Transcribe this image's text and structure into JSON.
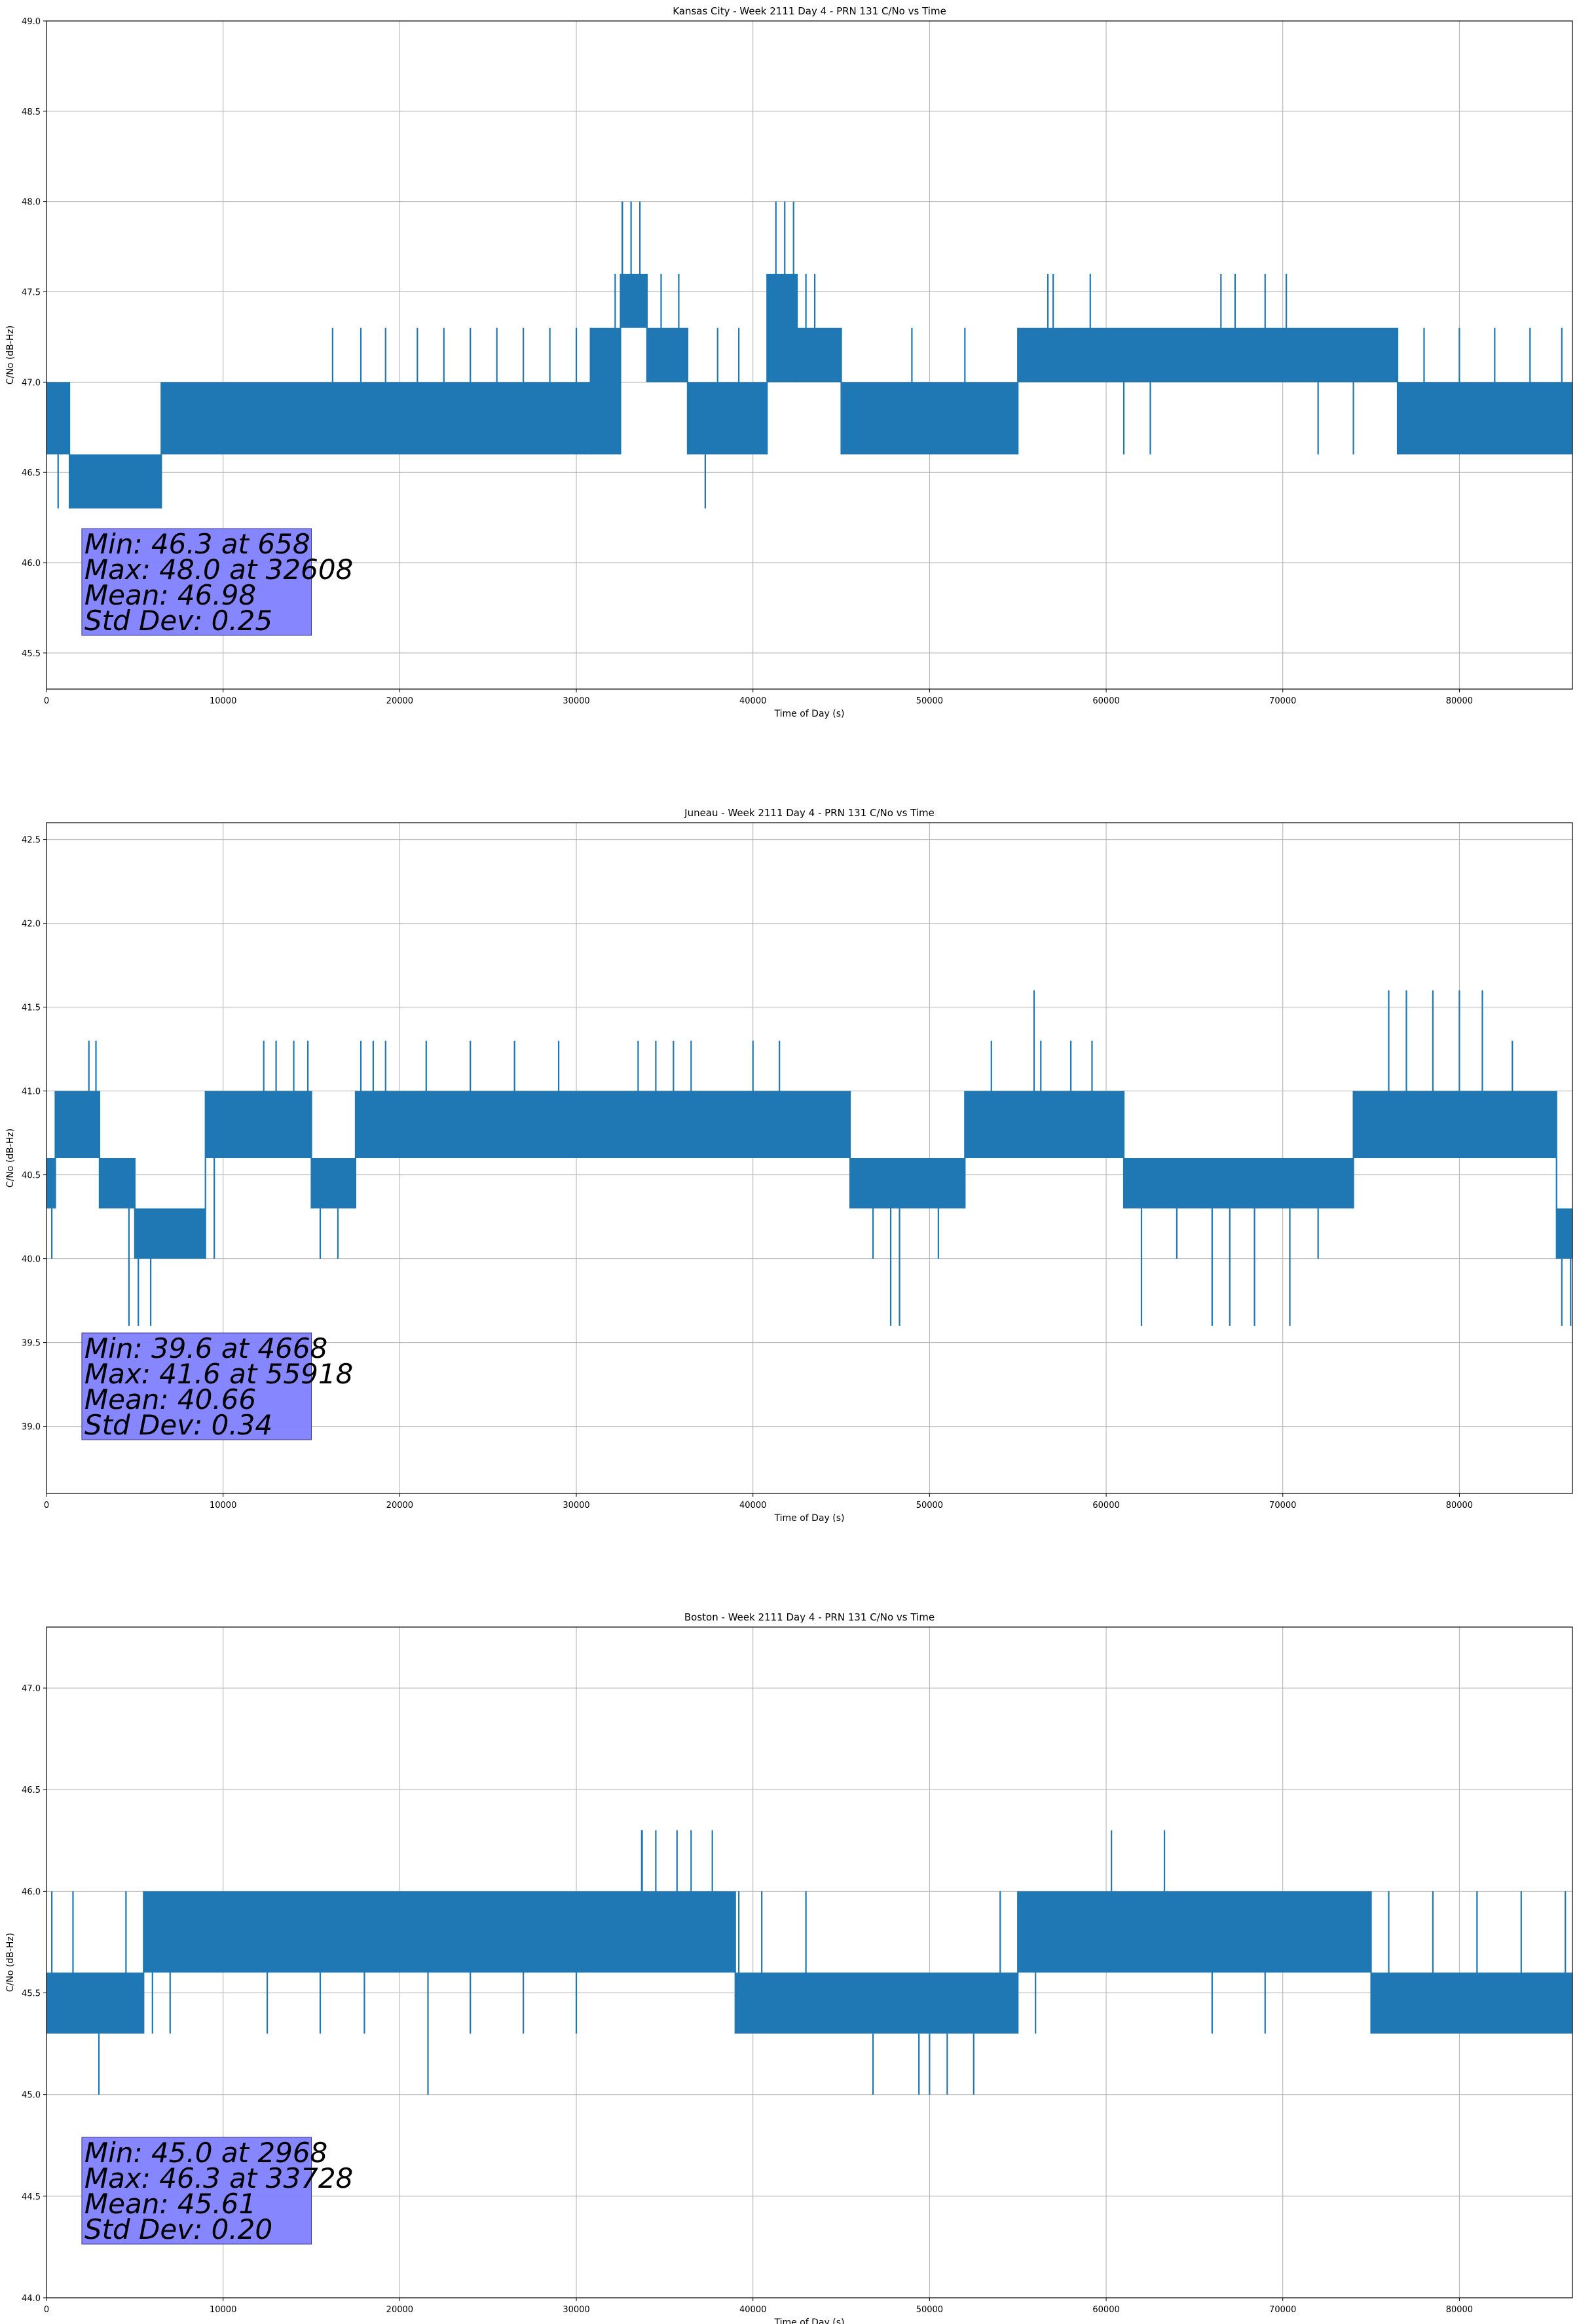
{
  "colors": {
    "series": "#1f77b4",
    "stats_box": "#8080ff",
    "grid": "#b0b0b0"
  },
  "chart_data": [
    {
      "type": "line",
      "title": "Kansas City - Week 2111 Day 4 - PRN 131 C/No vs Time",
      "xlabel": "Time of Day (s)",
      "ylabel": "C/No (dB-Hz)",
      "xlim": [
        0,
        86400
      ],
      "ylim": [
        45.3,
        49.0
      ],
      "xticks": [
        0,
        10000,
        20000,
        30000,
        40000,
        50000,
        60000,
        70000,
        80000
      ],
      "yticks": [
        45.5,
        46.0,
        46.5,
        47.0,
        47.5,
        48.0,
        48.5,
        49.0
      ],
      "grid": true,
      "stats": [
        "Min: 46.3 at 658",
        "Max: 48.0 at 32608",
        "Mean: 46.98",
        "Std Dev: 0.25"
      ],
      "series": [
        {
          "bands": [
            {
              "x": [
                0,
                1300
              ],
              "y": [
                46.6,
                47.0
              ]
            },
            {
              "x": [
                1300,
                6500
              ],
              "y": [
                46.3,
                46.6
              ]
            },
            {
              "x": [
                6500,
                30800
              ],
              "y": [
                46.6,
                47.0
              ]
            },
            {
              "x": [
                30800,
                32500
              ],
              "y": [
                46.6,
                47.3
              ]
            },
            {
              "x": [
                32500,
                34000
              ],
              "y": [
                47.3,
                47.6
              ]
            },
            {
              "x": [
                34000,
                36300
              ],
              "y": [
                47.0,
                47.3
              ]
            },
            {
              "x": [
                36300,
                40800
              ],
              "y": [
                46.6,
                47.0
              ]
            },
            {
              "x": [
                40800,
                42500
              ],
              "y": [
                47.0,
                47.6
              ]
            },
            {
              "x": [
                42500,
                45000
              ],
              "y": [
                47.0,
                47.3
              ]
            },
            {
              "x": [
                45000,
                55000
              ],
              "y": [
                46.6,
                47.0
              ]
            },
            {
              "x": [
                55000,
                76500
              ],
              "y": [
                47.0,
                47.3
              ]
            },
            {
              "x": [
                76500,
                86400
              ],
              "y": [
                46.6,
                47.0
              ]
            }
          ],
          "spikes": [
            [
              658,
              46.3
            ],
            [
              2200,
              46.3
            ],
            [
              5800,
              46.3
            ],
            [
              6500,
              46.3
            ],
            [
              16200,
              47.3
            ],
            [
              17800,
              47.3
            ],
            [
              19200,
              47.3
            ],
            [
              21000,
              47.3
            ],
            [
              22500,
              47.3
            ],
            [
              24000,
              47.3
            ],
            [
              25500,
              47.3
            ],
            [
              27000,
              47.3
            ],
            [
              28500,
              47.3
            ],
            [
              30000,
              47.3
            ],
            [
              32600,
              48.0
            ],
            [
              32608,
              48.0
            ],
            [
              33100,
              48.0
            ],
            [
              33600,
              48.0
            ],
            [
              32200,
              47.6
            ],
            [
              34800,
              47.6
            ],
            [
              35800,
              47.6
            ],
            [
              37300,
              46.3
            ],
            [
              38000,
              47.3
            ],
            [
              39200,
              47.3
            ],
            [
              41300,
              48.0
            ],
            [
              41800,
              48.0
            ],
            [
              42300,
              48.0
            ],
            [
              43000,
              47.6
            ],
            [
              43500,
              47.6
            ],
            [
              45500,
              46.6
            ],
            [
              47000,
              46.6
            ],
            [
              49000,
              47.3
            ],
            [
              52000,
              47.3
            ],
            [
              56700,
              47.6
            ],
            [
              57000,
              47.6
            ],
            [
              59100,
              47.6
            ],
            [
              61000,
              46.6
            ],
            [
              62500,
              46.6
            ],
            [
              66500,
              47.6
            ],
            [
              67300,
              47.6
            ],
            [
              69000,
              47.6
            ],
            [
              70200,
              47.6
            ],
            [
              72000,
              46.6
            ],
            [
              74000,
              46.6
            ],
            [
              78000,
              47.3
            ],
            [
              80000,
              47.3
            ],
            [
              82000,
              47.3
            ],
            [
              84000,
              47.3
            ],
            [
              85800,
              47.3
            ]
          ]
        }
      ]
    },
    {
      "type": "line",
      "title": "Juneau - Week 2111 Day 4 - PRN 131 C/No vs Time",
      "xlabel": "Time of Day (s)",
      "ylabel": "C/No (dB-Hz)",
      "xlim": [
        0,
        86400
      ],
      "ylim": [
        38.6,
        42.6
      ],
      "xticks": [
        0,
        10000,
        20000,
        30000,
        40000,
        50000,
        60000,
        70000,
        80000
      ],
      "yticks": [
        39.0,
        39.5,
        40.0,
        40.5,
        41.0,
        41.5,
        42.0,
        42.5
      ],
      "grid": true,
      "stats": [
        "Min: 39.6 at 4668",
        "Max: 41.6 at 55918",
        "Mean: 40.66",
        "Std Dev: 0.34"
      ],
      "series": [
        {
          "bands": [
            {
              "x": [
                0,
                500
              ],
              "y": [
                40.3,
                40.6
              ]
            },
            {
              "x": [
                500,
                3000
              ],
              "y": [
                40.6,
                41.0
              ]
            },
            {
              "x": [
                3000,
                5000
              ],
              "y": [
                40.3,
                40.6
              ]
            },
            {
              "x": [
                5000,
                9000
              ],
              "y": [
                40.0,
                40.3
              ]
            },
            {
              "x": [
                9000,
                15000
              ],
              "y": [
                40.6,
                41.0
              ]
            },
            {
              "x": [
                15000,
                17500
              ],
              "y": [
                40.3,
                40.6
              ]
            },
            {
              "x": [
                17500,
                45500
              ],
              "y": [
                40.6,
                41.0
              ]
            },
            {
              "x": [
                45500,
                52000
              ],
              "y": [
                40.3,
                40.6
              ]
            },
            {
              "x": [
                52000,
                61000
              ],
              "y": [
                40.6,
                41.0
              ]
            },
            {
              "x": [
                61000,
                74000
              ],
              "y": [
                40.3,
                40.6
              ]
            },
            {
              "x": [
                74000,
                85500
              ],
              "y": [
                40.6,
                41.0
              ]
            },
            {
              "x": [
                85500,
                86400
              ],
              "y": [
                40.0,
                40.3
              ]
            }
          ],
          "spikes": [
            [
              300,
              40.0
            ],
            [
              2400,
              41.3
            ],
            [
              2800,
              41.3
            ],
            [
              4668,
              39.6
            ],
            [
              5200,
              39.6
            ],
            [
              5900,
              39.6
            ],
            [
              9500,
              40.0
            ],
            [
              12300,
              41.3
            ],
            [
              13000,
              41.3
            ],
            [
              14000,
              41.3
            ],
            [
              14800,
              41.3
            ],
            [
              15500,
              40.0
            ],
            [
              16500,
              40.0
            ],
            [
              17800,
              41.3
            ],
            [
              18500,
              41.3
            ],
            [
              19200,
              41.3
            ],
            [
              21500,
              41.3
            ],
            [
              24000,
              41.3
            ],
            [
              26500,
              41.3
            ],
            [
              29000,
              41.3
            ],
            [
              33500,
              41.3
            ],
            [
              34500,
              41.3
            ],
            [
              35500,
              41.3
            ],
            [
              36500,
              41.3
            ],
            [
              40000,
              41.3
            ],
            [
              41500,
              41.3
            ],
            [
              46800,
              40.0
            ],
            [
              47800,
              39.6
            ],
            [
              48300,
              39.6
            ],
            [
              50500,
              40.0
            ],
            [
              53500,
              41.3
            ],
            [
              55918,
              41.6
            ],
            [
              56300,
              41.3
            ],
            [
              58000,
              41.3
            ],
            [
              59200,
              41.3
            ],
            [
              62000,
              39.6
            ],
            [
              64000,
              40.0
            ],
            [
              66000,
              39.6
            ],
            [
              67000,
              39.6
            ],
            [
              68400,
              39.6
            ],
            [
              70400,
              39.6
            ],
            [
              72000,
              40.0
            ],
            [
              76000,
              41.6
            ],
            [
              77000,
              41.6
            ],
            [
              78500,
              41.6
            ],
            [
              80000,
              41.6
            ],
            [
              81300,
              41.6
            ],
            [
              83000,
              41.3
            ],
            [
              85800,
              39.6
            ],
            [
              86300,
              39.6
            ]
          ]
        }
      ]
    },
    {
      "type": "line",
      "title": "Boston - Week 2111 Day 4 - PRN 131 C/No vs Time",
      "xlabel": "Time of Day (s)",
      "ylabel": "C/No (dB-Hz)",
      "xlim": [
        0,
        86400
      ],
      "ylim": [
        44.0,
        47.3
      ],
      "xticks": [
        0,
        10000,
        20000,
        30000,
        40000,
        50000,
        60000,
        70000,
        80000
      ],
      "yticks": [
        44.0,
        44.5,
        45.0,
        45.5,
        46.0,
        46.5,
        47.0
      ],
      "grid": true,
      "stats": [
        "Min: 45.0 at 2968",
        "Max: 46.3 at 33728",
        "Mean: 45.61",
        "Std Dev: 0.20"
      ],
      "series": [
        {
          "bands": [
            {
              "x": [
                0,
                5500
              ],
              "y": [
                45.3,
                45.6
              ]
            },
            {
              "x": [
                5500,
                39000
              ],
              "y": [
                45.6,
                46.0
              ]
            },
            {
              "x": [
                39000,
                55000
              ],
              "y": [
                45.3,
                45.6
              ]
            },
            {
              "x": [
                55000,
                75000
              ],
              "y": [
                45.6,
                46.0
              ]
            },
            {
              "x": [
                75000,
                86400
              ],
              "y": [
                45.3,
                45.6
              ]
            }
          ],
          "spikes": [
            [
              300,
              46.0
            ],
            [
              1500,
              46.0
            ],
            [
              2968,
              45.0
            ],
            [
              4500,
              46.0
            ],
            [
              6000,
              45.3
            ],
            [
              7000,
              45.3
            ],
            [
              12500,
              45.3
            ],
            [
              15500,
              45.3
            ],
            [
              18000,
              45.3
            ],
            [
              21600,
              45.0
            ],
            [
              24000,
              45.3
            ],
            [
              27000,
              45.3
            ],
            [
              30000,
              45.3
            ],
            [
              33700,
              46.3
            ],
            [
              33728,
              46.3
            ],
            [
              34500,
              46.3
            ],
            [
              35700,
              46.3
            ],
            [
              36500,
              46.3
            ],
            [
              37700,
              46.3
            ],
            [
              39200,
              46.0
            ],
            [
              40500,
              46.0
            ],
            [
              43000,
              46.0
            ],
            [
              46800,
              45.0
            ],
            [
              49400,
              45.0
            ],
            [
              50000,
              45.0
            ],
            [
              51000,
              45.0
            ],
            [
              52500,
              45.0
            ],
            [
              54000,
              46.0
            ],
            [
              56000,
              45.3
            ],
            [
              60300,
              46.3
            ],
            [
              63300,
              46.3
            ],
            [
              66000,
              45.3
            ],
            [
              69000,
              45.3
            ],
            [
              72000,
              46.0
            ],
            [
              76000,
              46.0
            ],
            [
              78500,
              46.0
            ],
            [
              81000,
              46.0
            ],
            [
              83500,
              46.0
            ],
            [
              86000,
              46.0
            ]
          ]
        }
      ]
    }
  ]
}
